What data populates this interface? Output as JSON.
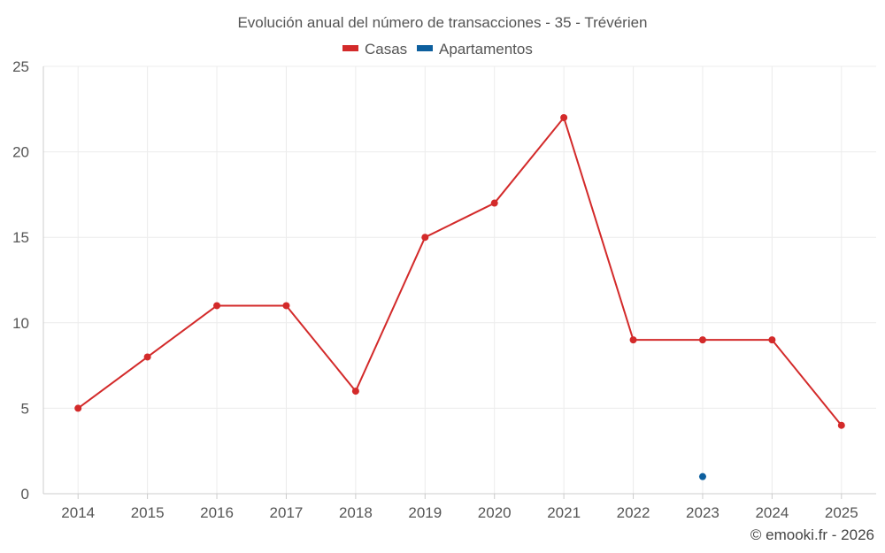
{
  "chart_data": {
    "type": "line",
    "title": "Evolución anual del número de transacciones - 35 - Trévérien",
    "categories": [
      "2014",
      "2015",
      "2016",
      "2017",
      "2018",
      "2019",
      "2020",
      "2021",
      "2022",
      "2023",
      "2024",
      "2025"
    ],
    "yticks": [
      "0",
      "5",
      "10",
      "15",
      "20",
      "25"
    ],
    "ylim": [
      0,
      25
    ],
    "legend_position": "top-center",
    "grid": true,
    "series": [
      {
        "name": "Casas",
        "color": "#d32a2a",
        "values": [
          5,
          8,
          11,
          11,
          6,
          15,
          17,
          22,
          9,
          9,
          9,
          4
        ]
      },
      {
        "name": "Apartamentos",
        "color": "#0d5f9e",
        "values": [
          null,
          null,
          null,
          null,
          null,
          null,
          null,
          null,
          null,
          1,
          null,
          null
        ]
      }
    ]
  },
  "credit": "© emooki.fr - 2026"
}
